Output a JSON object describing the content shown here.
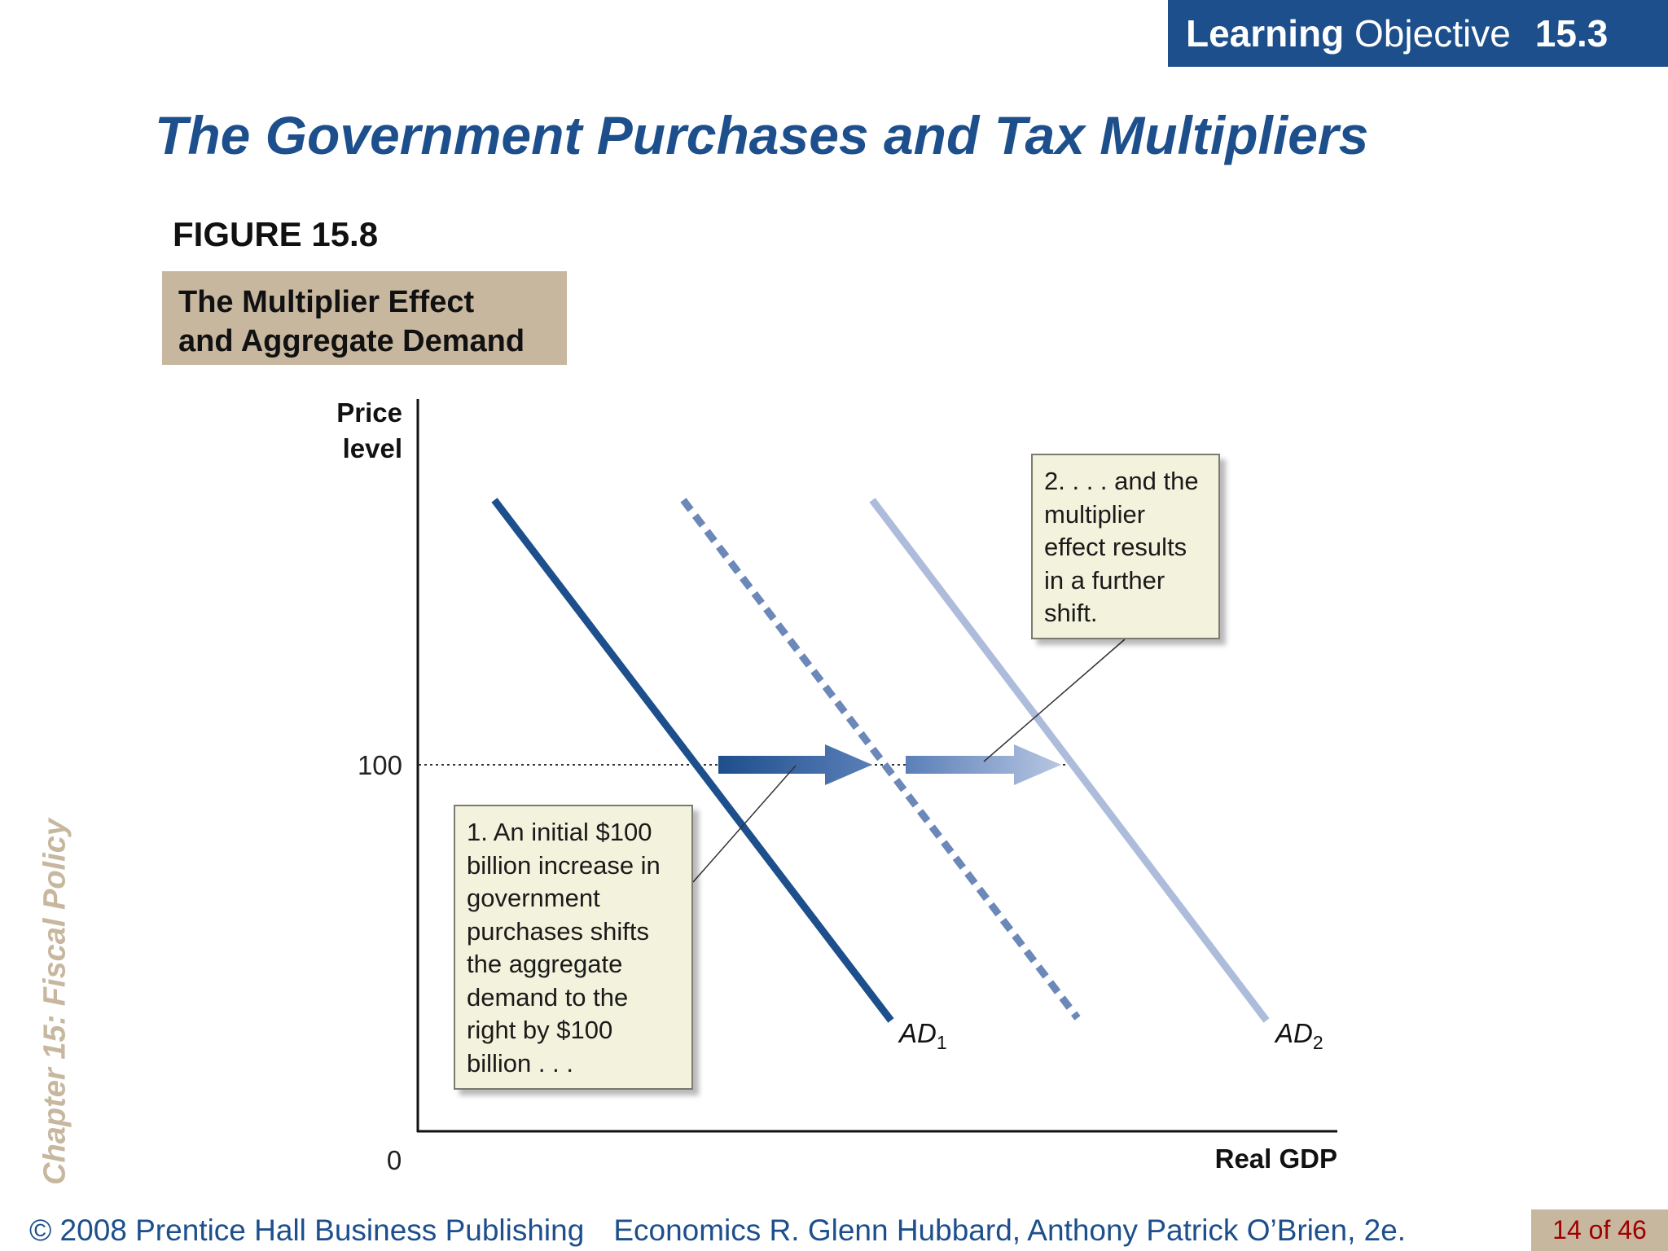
{
  "banner": {
    "learning": "Learning",
    "objective": "Objective",
    "number": "15.3"
  },
  "slide_title": "The Government Purchases and Tax Multipliers",
  "figure": {
    "label": "FIGURE 15.8",
    "caption_line1": "The Multiplier Effect",
    "caption_line2": "and Aggregate Demand"
  },
  "side_text": "Chapter 15:  Fiscal Policy",
  "chart_data": {
    "type": "line",
    "y_axis_label_line1": "Price",
    "y_axis_label_line2": "level",
    "x_axis_label": "Real GDP",
    "origin_label": "0",
    "y_tick_label": "100",
    "curves": [
      {
        "label_main": "AD",
        "label_sub": "1",
        "style": "solid",
        "color": "#1d4f8c"
      },
      {
        "label_main": "",
        "label_sub": "",
        "style": "dashed",
        "color": "#6b88b9"
      },
      {
        "label_main": "AD",
        "label_sub": "2",
        "style": "solid",
        "color": "#adbcdb"
      }
    ],
    "grid": false
  },
  "callouts": {
    "first": [
      "1. An initial $100",
      "billion increase in",
      "government",
      "purchases shifts",
      "the aggregate",
      "demand to the",
      "right by $100",
      "billion . . ."
    ],
    "second": [
      "2. . . . and the",
      "multiplier",
      "effect results",
      "in a further",
      "shift."
    ]
  },
  "footer": {
    "copyright": "© 2008 Prentice Hall Business Publishing",
    "book": "Economics  R. Glenn Hubbard, Anthony Patrick O’Brien, 2e.",
    "page": "14 of 46"
  }
}
